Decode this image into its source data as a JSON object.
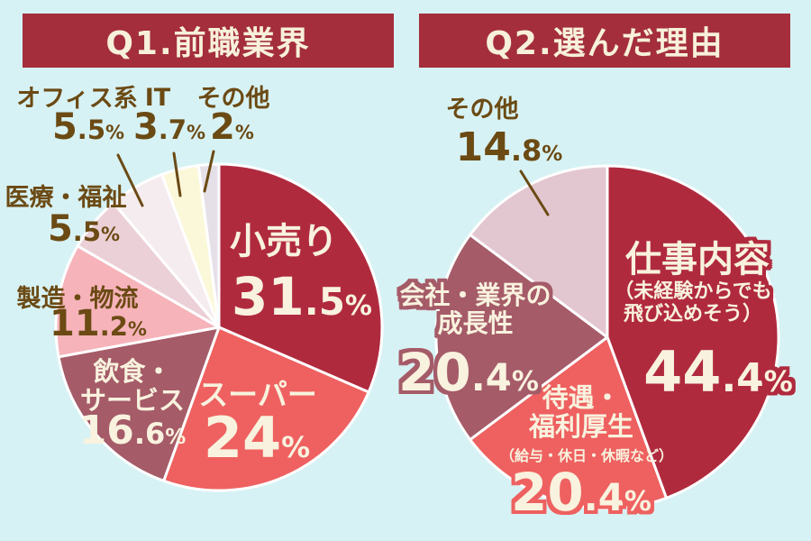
{
  "page": {
    "background": "#d7f2f4"
  },
  "theme": {
    "title_bar_color": "#a42e3c",
    "title_text_color": "#f7f0da",
    "outside_label_color": "#6b4a14",
    "inside_label_color": "#f8f2de",
    "leader_line_color": "#6b4a14"
  },
  "charts": [
    {
      "title": "Q1.前職業界",
      "chart_data": {
        "type": "pie",
        "unit": "%",
        "start_angle_deg": 0,
        "direction": "clockwise",
        "slices": [
          {
            "label": "小売り",
            "value": 31.5,
            "num": "31",
            "dec": ".5",
            "pct": "%",
            "color": "#b02a3e",
            "label_position": "inside"
          },
          {
            "label": "スーパー",
            "value": 24,
            "num": "24",
            "dec": "",
            "pct": "%",
            "color": "#ee6160",
            "label_position": "inside"
          },
          {
            "label": "飲食・サービス",
            "line1": "飲食・",
            "line2": "サービス",
            "value": 16.6,
            "num": "16",
            "dec": ".6",
            "pct": "%",
            "color": "#a55b68",
            "label_position": "inside"
          },
          {
            "label": "製造・物流",
            "value": 11.2,
            "num": "11",
            "dec": ".2",
            "pct": "%",
            "color": "#f6b3ba",
            "label_position": "outside"
          },
          {
            "label": "医療・福祉",
            "value": 5.5,
            "num": "5",
            "dec": ".5",
            "pct": "%",
            "color": "#ecd0d7",
            "label_position": "outside"
          },
          {
            "label": "オフィス系",
            "value": 5.5,
            "num": "5",
            "dec": ".5",
            "pct": "%",
            "color": "#f5ecef",
            "label_position": "outside"
          },
          {
            "label": "IT",
            "value": 3.7,
            "num": "3",
            "dec": ".7",
            "pct": "%",
            "color": "#fbf8da",
            "label_position": "outside"
          },
          {
            "label": "その他",
            "value": 2,
            "num": "2",
            "dec": "",
            "pct": "%",
            "color": "#e5e0e8",
            "label_position": "outside"
          }
        ]
      }
    },
    {
      "title": "Q2.選んだ理由",
      "chart_data": {
        "type": "pie",
        "unit": "%",
        "start_angle_deg": 0,
        "direction": "clockwise",
        "slices": [
          {
            "label": "仕事内容",
            "note1": "（未経験からでも",
            "note2": "飛び込めそう）",
            "value": 44.4,
            "num": "44",
            "dec": ".4",
            "pct": "%",
            "color": "#b02a3e",
            "label_position": "inside"
          },
          {
            "label": "待遇・福利厚生",
            "line1": "待遇・",
            "line2": "福利厚生",
            "note": "（給与・休日・休暇など）",
            "value": 20.4,
            "num": "20",
            "dec": ".4",
            "pct": "%",
            "color": "#ee6160",
            "label_position": "inside"
          },
          {
            "label": "会社・業界の成長性",
            "line1": "会社・業界の",
            "line2": "成長性",
            "value": 20.4,
            "num": "20",
            "dec": ".4",
            "pct": "%",
            "color": "#a55b68",
            "label_position": "inside"
          },
          {
            "label": "その他",
            "value": 14.8,
            "num": "14",
            "dec": ".8",
            "pct": "%",
            "color": "#e3c7d0",
            "label_position": "outside"
          }
        ]
      }
    }
  ]
}
